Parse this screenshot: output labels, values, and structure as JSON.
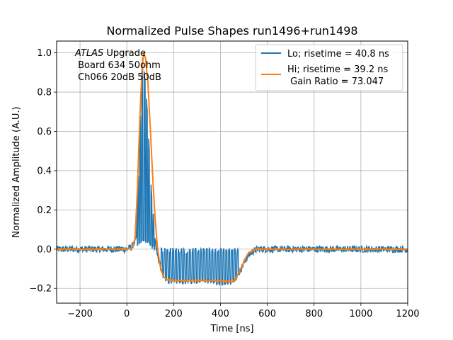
{
  "chart_data": {
    "type": "line",
    "title": "Normalized Pulse Shapes run1496+run1498",
    "xlabel": "Time [ns]",
    "ylabel": "Normalized Amplitude (A.U.)",
    "xlim": [
      -300,
      1200
    ],
    "ylim": [
      -0.275,
      1.06
    ],
    "xticks": [
      -200,
      0,
      200,
      400,
      600,
      800,
      1000,
      1200
    ],
    "yticks": [
      -0.2,
      0.0,
      0.2,
      0.4,
      0.6,
      0.8,
      1.0
    ],
    "xtick_labels": [
      "−200",
      "0",
      "200",
      "400",
      "600",
      "800",
      "1000",
      "1200"
    ],
    "ytick_labels": [
      "−0.2",
      "0.0",
      "0.2",
      "0.4",
      "0.6",
      "0.8",
      "1.0"
    ],
    "grid": true,
    "legend_position": "top-right",
    "annotation": {
      "italic": "ATLAS",
      "line1_rest": " Upgrade",
      "line2": " Board 634 50ohm",
      "line3": " Ch066 20dB 50dB"
    },
    "series": [
      {
        "name": "Lo; risetime = 40.8 ns",
        "color": "#1f77b4",
        "style": "noisy-oscillating",
        "x": [
          -300,
          0,
          20,
          40,
          55,
          68,
          85,
          105,
          120,
          135,
          150,
          170,
          200,
          250,
          300,
          350,
          400,
          440,
          460,
          480,
          500,
          520,
          540,
          560,
          600,
          800,
          1000,
          1200
        ],
        "y": [
          0.0,
          0.0,
          0.01,
          0.05,
          0.55,
          1.0,
          0.75,
          0.3,
          0.05,
          -0.05,
          -0.12,
          -0.16,
          -0.165,
          -0.165,
          -0.162,
          -0.165,
          -0.17,
          -0.17,
          -0.155,
          -0.12,
          -0.07,
          -0.03,
          -0.01,
          0.0,
          0.0,
          0.0,
          0.0,
          0.0
        ]
      },
      {
        "name": "Hi; risetime = 39.2 ns",
        "name_line2": " Gain Ratio = 73.047",
        "color": "#ff7f0e",
        "style": "smooth",
        "x": [
          -300,
          0,
          20,
          35,
          45,
          55,
          65,
          72,
          80,
          90,
          100,
          110,
          120,
          130,
          140,
          150,
          160,
          175,
          200,
          250,
          300,
          350,
          400,
          440,
          460,
          475,
          490,
          505,
          520,
          535,
          550,
          570,
          600,
          800,
          1000,
          1200
        ],
        "y": [
          0.0,
          0.0,
          0.005,
          0.05,
          0.3,
          0.65,
          0.92,
          1.0,
          0.97,
          0.85,
          0.62,
          0.38,
          0.17,
          0.02,
          -0.07,
          -0.12,
          -0.145,
          -0.155,
          -0.16,
          -0.16,
          -0.16,
          -0.16,
          -0.162,
          -0.165,
          -0.16,
          -0.13,
          -0.09,
          -0.05,
          -0.02,
          -0.01,
          0.0,
          0.0,
          0.0,
          0.0,
          0.0,
          0.0
        ]
      }
    ]
  }
}
